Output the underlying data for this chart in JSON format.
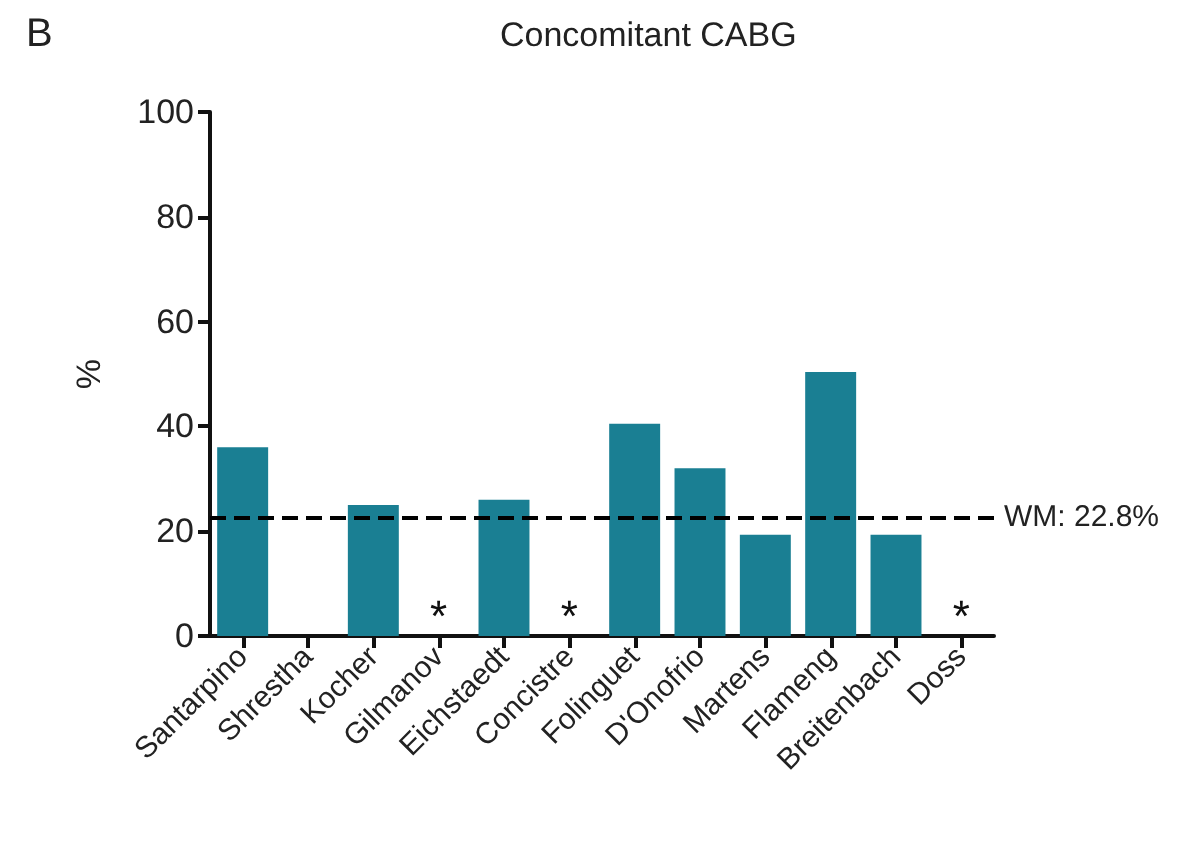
{
  "chart_data": {
    "type": "bar",
    "title": "Concomitant CABG",
    "ylabel": "%",
    "categories": [
      "Santarpino",
      "Shrestha",
      "Kocher",
      "Gilmanov",
      "Eichstaedt",
      "Concistre",
      "Folinguet",
      "D'Onofrio",
      "Martens",
      "Flameng",
      "Breitenbach",
      "Doss"
    ],
    "values": [
      36,
      0,
      25,
      null,
      26,
      null,
      40.5,
      32,
      19.3,
      50.4,
      19.3,
      null
    ],
    "color": "#1a7f93",
    "ylim": [
      0,
      100
    ],
    "yticks": [
      0,
      20,
      40,
      60,
      80,
      100
    ],
    "grid": false,
    "ref_lines": [
      {
        "axis": "y",
        "value": 22.8,
        "label": "WM: 22.8%",
        "color": "#000000",
        "line_style": "dashed"
      }
    ],
    "annotations": [
      "B",
      "*",
      "*",
      "*"
    ]
  }
}
